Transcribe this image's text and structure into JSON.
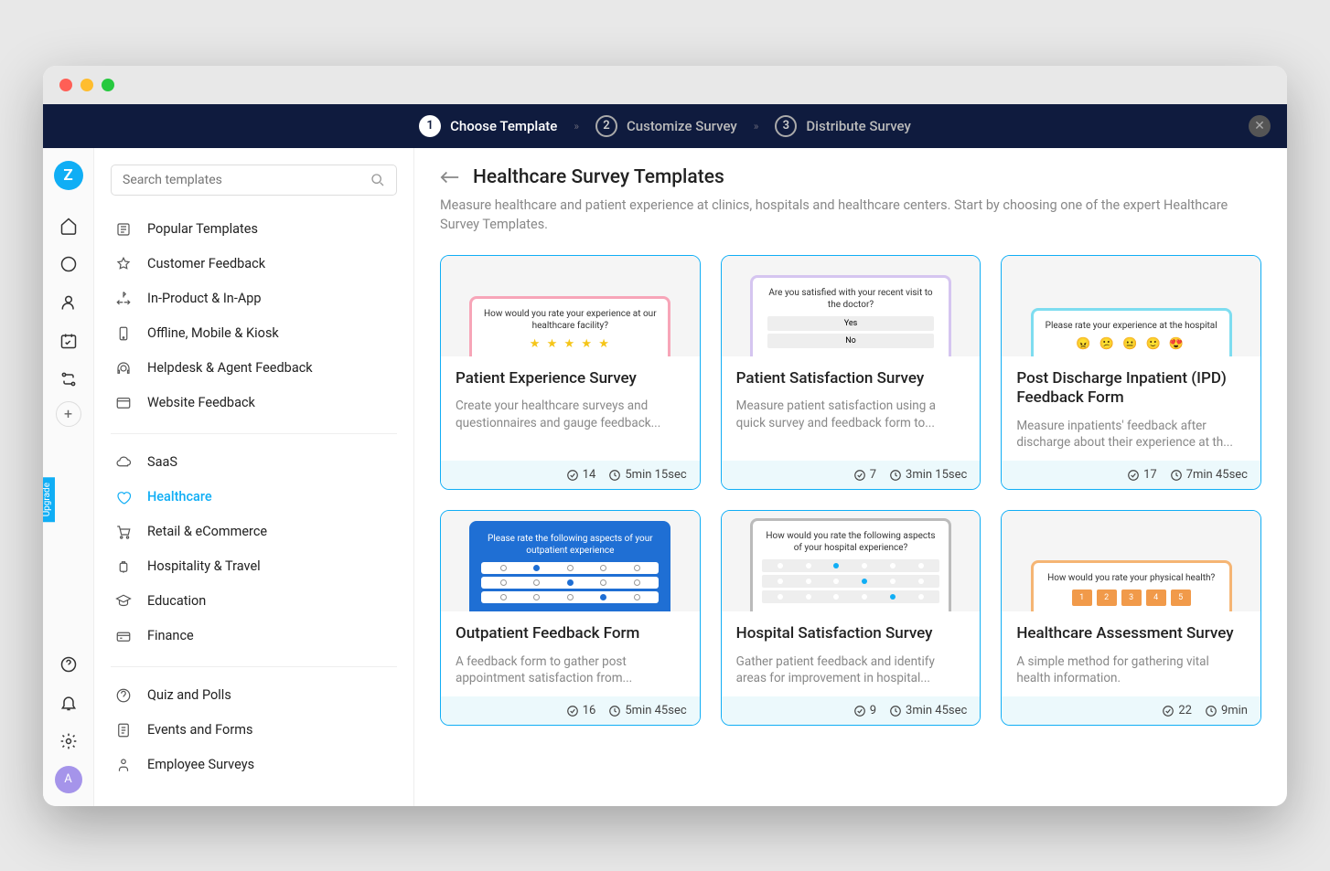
{
  "stepper": {
    "steps": [
      {
        "num": "1",
        "label": "Choose Template",
        "active": true
      },
      {
        "num": "2",
        "label": "Customize Survey",
        "active": false
      },
      {
        "num": "3",
        "label": "Distribute Survey",
        "active": false
      }
    ]
  },
  "search": {
    "placeholder": "Search templates"
  },
  "categories": {
    "group1": [
      "Popular Templates",
      "Customer Feedback",
      "In-Product & In-App",
      "Offline, Mobile & Kiosk",
      "Helpdesk & Agent Feedback",
      "Website Feedback"
    ],
    "group2": [
      "SaaS",
      "Healthcare",
      "Retail & eCommerce",
      "Hospitality & Travel",
      "Education",
      "Finance"
    ],
    "group3": [
      "Quiz and Polls",
      "Events and Forms",
      "Employee Surveys"
    ],
    "active": "Healthcare"
  },
  "main": {
    "title": "Healthcare Survey Templates",
    "description": "Measure healthcare and patient experience at clinics, hospitals and healthcare centers. Start by choosing one of the expert Healthcare Survey Templates."
  },
  "cards": [
    {
      "title": "Patient Experience Survey",
      "desc": "Create your healthcare surveys and questionnaires and gauge feedback...",
      "questions": "14",
      "time": "5min 15sec",
      "preview_q": "How would you rate your experience at our healthcare facility?",
      "theme": "pink"
    },
    {
      "title": "Patient Satisfaction Survey",
      "desc": "Measure patient satisfaction using a quick survey and feedback form to...",
      "questions": "7",
      "time": "3min 15sec",
      "preview_q": "Are you satisfied with your recent visit to the doctor?",
      "theme": "purple"
    },
    {
      "title": "Post Discharge Inpatient (IPD) Feedback Form",
      "desc": "Measure inpatients' feedback after discharge about their experience at th...",
      "questions": "17",
      "time": "7min 45sec",
      "preview_q": "Please rate your experience at the hospital",
      "theme": "cyan"
    },
    {
      "title": "Outpatient Feedback Form",
      "desc": "A feedback form to gather post appointment satisfaction from...",
      "questions": "16",
      "time": "5min 45sec",
      "preview_q": "Please rate the following aspects of your outpatient experience",
      "theme": "blue"
    },
    {
      "title": "Hospital Satisfaction Survey",
      "desc": "Gather patient feedback and identify areas for improvement in hospital...",
      "questions": "9",
      "time": "3min 45sec",
      "preview_q": "How would you rate the following aspects of your hospital experience?",
      "theme": "gray"
    },
    {
      "title": "Healthcare Assessment Survey",
      "desc": "A simple method for gathering vital health information.",
      "questions": "22",
      "time": "9min",
      "preview_q": "How would you rate your physical health?",
      "theme": "orange"
    }
  ],
  "upgrade": "Upgrade",
  "avatar": "A"
}
